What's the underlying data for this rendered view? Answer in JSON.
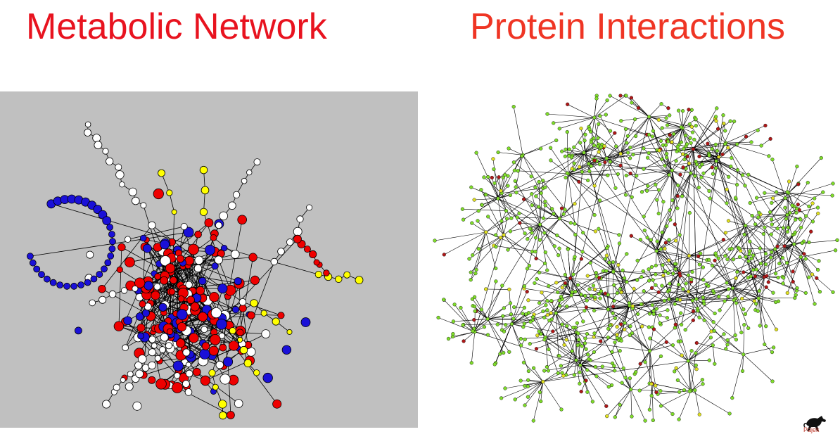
{
  "titles": {
    "left": "Metabolic Network",
    "right": "Protein Interactions"
  },
  "colors": {
    "left_title": "#e8131f",
    "right_title": "#ef3524",
    "metabolic_background": "#c0c0c0",
    "metabolic_node_red": "#ee0000",
    "metabolic_node_blue": "#1a10d8",
    "metabolic_node_white": "#ffffff",
    "metabolic_node_yellow": "#ffff00",
    "protein_node_green": "#7fdc2a",
    "protein_node_red": "#b01818",
    "protein_node_yellow": "#e0e020",
    "edge": "#000000"
  },
  "logo": {
    "icon": "horse-icon",
    "text": "Pajek"
  }
}
